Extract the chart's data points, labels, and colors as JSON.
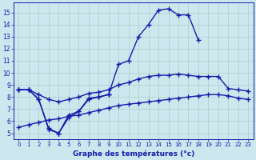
{
  "xlabel": "Graphe des températures (°c)",
  "xlim": [
    -0.5,
    23.5
  ],
  "ylim": [
    4.5,
    15.8
  ],
  "xticks": [
    0,
    1,
    2,
    3,
    4,
    5,
    6,
    7,
    8,
    9,
    10,
    11,
    12,
    13,
    14,
    15,
    16,
    17,
    18,
    19,
    20,
    21,
    22,
    23
  ],
  "yticks": [
    5,
    6,
    7,
    8,
    9,
    10,
    11,
    12,
    13,
    14,
    15
  ],
  "background_color": "#cce8ee",
  "grid_color": "#aacccc",
  "line_color": "#1a1aaa",
  "line_width": 1.0,
  "marker": "+",
  "marker_size": 4.0,
  "lines": [
    {
      "x": [
        0,
        1,
        2,
        3,
        4,
        5,
        6,
        7,
        8,
        9,
        10,
        11,
        12,
        13,
        14,
        15,
        16,
        17,
        18
      ],
      "y": [
        8.6,
        8.6,
        7.8,
        5.4,
        5.0,
        6.3,
        6.8,
        7.8,
        8.0,
        8.2,
        10.7,
        11.0,
        13.0,
        14.0,
        15.2,
        15.3,
        14.8,
        14.8,
        12.7
      ]
    },
    {
      "x": [
        0,
        1,
        2,
        3,
        4,
        5,
        6,
        7,
        8,
        9
      ],
      "y": [
        8.6,
        8.6,
        7.8,
        5.3,
        5.0,
        6.5,
        6.8,
        7.9,
        8.0,
        8.2
      ]
    },
    {
      "x": [
        0,
        1,
        2,
        3,
        4,
        5,
        6,
        7,
        8,
        9,
        10,
        11,
        12,
        13,
        14,
        15,
        16,
        17,
        18,
        19,
        20,
        21,
        22,
        23
      ],
      "y": [
        8.6,
        8.6,
        8.2,
        7.8,
        7.6,
        7.8,
        8.0,
        8.3,
        8.4,
        8.6,
        9.0,
        9.2,
        9.5,
        9.7,
        9.8,
        9.8,
        9.9,
        9.8,
        9.7,
        9.7,
        9.7,
        8.7,
        8.6,
        8.5
      ]
    },
    {
      "x": [
        0,
        1,
        2,
        3,
        4,
        5,
        6,
        7,
        8,
        9,
        10,
        11,
        12,
        13,
        14,
        15,
        16,
        17,
        18,
        19,
        20,
        21,
        22,
        23
      ],
      "y": [
        5.5,
        5.7,
        5.9,
        6.1,
        6.2,
        6.4,
        6.5,
        6.7,
        6.9,
        7.1,
        7.3,
        7.4,
        7.5,
        7.6,
        7.7,
        7.8,
        7.9,
        8.0,
        8.1,
        8.2,
        8.2,
        8.1,
        7.9,
        7.8
      ]
    }
  ]
}
